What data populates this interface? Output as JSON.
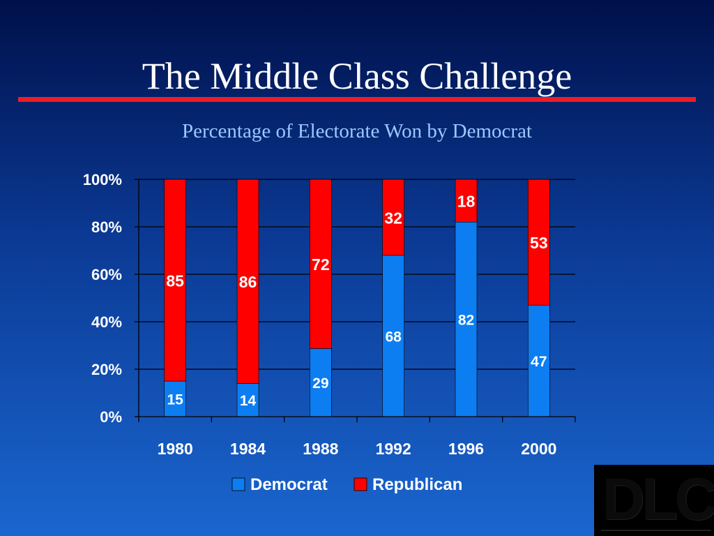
{
  "slide": {
    "title": "The Middle Class Challenge",
    "subtitle": "Percentage of Electorate Won by Democrat",
    "logo_text": "DLC"
  },
  "colors": {
    "democrat": "#0d7df2",
    "republican": "#ff0000",
    "text": "#ffffff",
    "title_rule": "#ee1c25"
  },
  "chart_data": {
    "type": "bar",
    "stacked": true,
    "categories": [
      "1980",
      "1984",
      "1988",
      "1992",
      "1996",
      "2000"
    ],
    "series": [
      {
        "name": "Democrat",
        "values": [
          15,
          14,
          29,
          68,
          82,
          47
        ]
      },
      {
        "name": "Republican",
        "values": [
          85,
          86,
          72,
          32,
          18,
          53
        ]
      }
    ],
    "ylim": [
      0,
      100
    ],
    "yticks": [
      "0%",
      "20%",
      "40%",
      "60%",
      "80%",
      "100%"
    ],
    "grid": true,
    "legend": "bottom"
  }
}
